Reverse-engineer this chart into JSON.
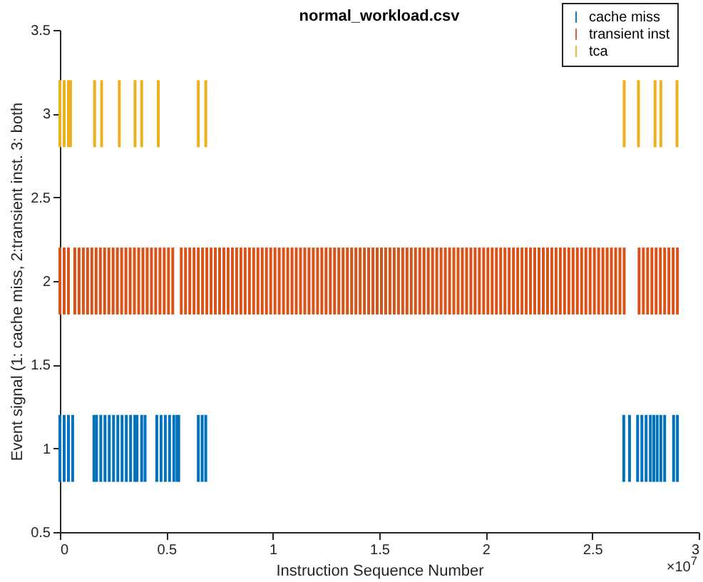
{
  "chart_data": {
    "type": "bar",
    "title": "normal_workload.csv",
    "xlabel": "Instruction Sequence Number",
    "ylabel": "Event signal (1: cache miss, 2:transient inst. 3: both",
    "annotations": [
      "×10$^{7}$"
    ],
    "xlim": [
      0,
      3
    ],
    "xticks": [
      0,
      0.5,
      1,
      1.5,
      2,
      2.5,
      3
    ],
    "ylim": [
      0.5,
      3.5
    ],
    "yticks": [
      0.5,
      1,
      1.5,
      2,
      2.5,
      3,
      3.5
    ],
    "legend": "top right",
    "grid": false,
    "series": [
      {
        "name": "cache miss",
        "color": "#0072bd",
        "x": [
          0,
          0.02,
          0.04,
          0.06,
          0.16,
          0.172,
          0.192,
          0.212,
          0.232,
          0.252,
          0.272,
          0.292,
          0.312,
          0.332,
          0.352,
          0.362,
          0.384,
          0.4,
          0.455,
          0.475,
          0.495,
          0.515,
          0.535,
          0.55,
          0.558,
          0.65,
          0.668,
          0.685,
          2.648,
          2.675,
          2.713,
          2.733,
          2.753,
          2.773,
          2.789,
          2.805,
          2.822,
          2.84,
          2.882,
          2.9
        ],
        "values": [
          0.4,
          0.4,
          0.4,
          0.4,
          0.4,
          0.4,
          0.4,
          0.4,
          0.4,
          0.4,
          0.4,
          0.4,
          0.4,
          0.4,
          0.4,
          0.4,
          0.4,
          0.4,
          0.4,
          0.4,
          0.4,
          0.4,
          0.4,
          0.4,
          0.4,
          0.4,
          0.4,
          0.4,
          0.4,
          0.4,
          0.4,
          0.4,
          0.4,
          0.4,
          0.4,
          0.4,
          0.4,
          0.4,
          0.4,
          0.4
        ],
        "base": [
          0.8,
          0.8,
          0.8,
          0.8,
          0.8,
          0.8,
          0.8,
          0.8,
          0.8,
          0.8,
          0.8,
          0.8,
          0.8,
          0.8,
          0.8,
          0.8,
          0.8,
          0.8,
          0.8,
          0.8,
          0.8,
          0.8,
          0.8,
          0.8,
          0.8,
          0.8,
          0.8,
          0.8,
          0.8,
          0.8,
          0.8,
          0.8,
          0.8,
          0.8,
          0.8,
          0.8,
          0.8,
          0.8,
          0.8,
          0.8
        ]
      },
      {
        "name": "transient inst",
        "color": "#d95319",
        "x": [
          0,
          0.02,
          0.04,
          0.07,
          0.09,
          0.11,
          0.13,
          0.15,
          0.17,
          0.19,
          0.21,
          0.23,
          0.25,
          0.27,
          0.29,
          0.31,
          0.33,
          0.35,
          0.37,
          0.39,
          0.41,
          0.43,
          0.45,
          0.47,
          0.49,
          0.51,
          0.53,
          0.57,
          0.59,
          0.61,
          0.63,
          0.65,
          0.67,
          0.69,
          0.71,
          0.73,
          0.75,
          0.77,
          0.79,
          0.81,
          0.83,
          0.85,
          0.87,
          0.89,
          0.91,
          0.93,
          0.95,
          0.97,
          0.99,
          1.01,
          1.03,
          1.05,
          1.07,
          1.09,
          1.11,
          1.13,
          1.15,
          1.17,
          1.19,
          1.21,
          1.23,
          1.25,
          1.27,
          1.29,
          1.31,
          1.33,
          1.35,
          1.37,
          1.39,
          1.41,
          1.43,
          1.45,
          1.47,
          1.49,
          1.51,
          1.53,
          1.55,
          1.57,
          1.59,
          1.61,
          1.63,
          1.65,
          1.67,
          1.69,
          1.71,
          1.73,
          1.75,
          1.77,
          1.79,
          1.81,
          1.83,
          1.85,
          1.87,
          1.89,
          1.91,
          1.93,
          1.95,
          1.97,
          1.99,
          2.01,
          2.03,
          2.05,
          2.07,
          2.09,
          2.11,
          2.13,
          2.15,
          2.17,
          2.19,
          2.21,
          2.23,
          2.25,
          2.27,
          2.29,
          2.31,
          2.33,
          2.35,
          2.37,
          2.39,
          2.41,
          2.43,
          2.45,
          2.47,
          2.49,
          2.51,
          2.53,
          2.55,
          2.57,
          2.59,
          2.61,
          2.63,
          2.65,
          2.72,
          2.74,
          2.76,
          2.78,
          2.8,
          2.82,
          2.84,
          2.86,
          2.88,
          2.9
        ],
        "values": [
          0.4,
          0.4,
          0.4,
          0.4,
          0.4,
          0.4,
          0.4,
          0.4,
          0.4,
          0.4,
          0.4,
          0.4,
          0.4,
          0.4,
          0.4,
          0.4,
          0.4,
          0.4,
          0.4,
          0.4,
          0.4,
          0.4,
          0.4,
          0.4,
          0.4,
          0.4,
          0.4,
          0.4,
          0.4,
          0.4,
          0.4,
          0.4,
          0.4,
          0.4,
          0.4,
          0.4,
          0.4,
          0.4,
          0.4,
          0.4,
          0.4,
          0.4,
          0.4,
          0.4,
          0.4,
          0.4,
          0.4,
          0.4,
          0.4,
          0.4,
          0.4,
          0.4,
          0.4,
          0.4,
          0.4,
          0.4,
          0.4,
          0.4,
          0.4,
          0.4,
          0.4,
          0.4,
          0.4,
          0.4,
          0.4,
          0.4,
          0.4,
          0.4,
          0.4,
          0.4,
          0.4,
          0.4,
          0.4,
          0.4,
          0.4,
          0.4,
          0.4,
          0.4,
          0.4,
          0.4,
          0.4,
          0.4,
          0.4,
          0.4,
          0.4,
          0.4,
          0.4,
          0.4,
          0.4,
          0.4,
          0.4,
          0.4,
          0.4,
          0.4,
          0.4,
          0.4,
          0.4,
          0.4,
          0.4,
          0.4,
          0.4,
          0.4,
          0.4,
          0.4,
          0.4,
          0.4,
          0.4,
          0.4,
          0.4,
          0.4,
          0.4,
          0.4,
          0.4,
          0.4,
          0.4,
          0.4,
          0.4,
          0.4,
          0.4,
          0.4,
          0.4,
          0.4,
          0.4,
          0.4,
          0.4,
          0.4,
          0.4,
          0.4,
          0.4,
          0.4,
          0.4,
          0.4,
          0.4,
          0.4,
          0.4,
          0.4,
          0.4,
          0.4,
          0.4,
          0.4,
          0.4,
          0.4
        ],
        "base": [
          1.8,
          1.8,
          1.8,
          1.8,
          1.8,
          1.8,
          1.8,
          1.8,
          1.8,
          1.8,
          1.8,
          1.8,
          1.8,
          1.8,
          1.8,
          1.8,
          1.8,
          1.8,
          1.8,
          1.8,
          1.8,
          1.8,
          1.8,
          1.8,
          1.8,
          1.8,
          1.8,
          1.8,
          1.8,
          1.8,
          1.8,
          1.8,
          1.8,
          1.8,
          1.8,
          1.8,
          1.8,
          1.8,
          1.8,
          1.8,
          1.8,
          1.8,
          1.8,
          1.8,
          1.8,
          1.8,
          1.8,
          1.8,
          1.8,
          1.8,
          1.8,
          1.8,
          1.8,
          1.8,
          1.8,
          1.8,
          1.8,
          1.8,
          1.8,
          1.8,
          1.8,
          1.8,
          1.8,
          1.8,
          1.8,
          1.8,
          1.8,
          1.8,
          1.8,
          1.8,
          1.8,
          1.8,
          1.8,
          1.8,
          1.8,
          1.8,
          1.8,
          1.8,
          1.8,
          1.8,
          1.8,
          1.8,
          1.8,
          1.8,
          1.8,
          1.8,
          1.8,
          1.8,
          1.8,
          1.8,
          1.8,
          1.8,
          1.8,
          1.8,
          1.8,
          1.8,
          1.8,
          1.8,
          1.8,
          1.8,
          1.8,
          1.8,
          1.8,
          1.8,
          1.8,
          1.8,
          1.8,
          1.8,
          1.8,
          1.8,
          1.8,
          1.8,
          1.8,
          1.8,
          1.8,
          1.8,
          1.8,
          1.8,
          1.8,
          1.8,
          1.8,
          1.8,
          1.8,
          1.8,
          1.8,
          1.8,
          1.8,
          1.8,
          1.8,
          1.8,
          1.8,
          1.8,
          1.8,
          1.8,
          1.8,
          1.8,
          1.8,
          1.8,
          1.8,
          1.8,
          1.8,
          1.8
        ]
      },
      {
        "name": "tca",
        "color": "#edb120",
        "x": [
          0,
          0.02,
          0.04,
          0.05,
          0.163,
          0.196,
          0.279,
          0.353,
          0.384,
          0.462,
          0.65,
          0.685,
          2.65,
          2.717,
          2.795,
          2.822,
          2.898
        ],
        "values": [
          0.4,
          0.4,
          0.4,
          0.4,
          0.4,
          0.4,
          0.4,
          0.4,
          0.4,
          0.4,
          0.4,
          0.4,
          0.4,
          0.4,
          0.4,
          0.4,
          0.4
        ],
        "base": [
          2.8,
          2.8,
          2.8,
          2.8,
          2.8,
          2.8,
          2.8,
          2.8,
          2.8,
          2.8,
          2.8,
          2.8,
          2.8,
          2.8,
          2.8,
          2.8,
          2.8
        ]
      }
    ]
  }
}
